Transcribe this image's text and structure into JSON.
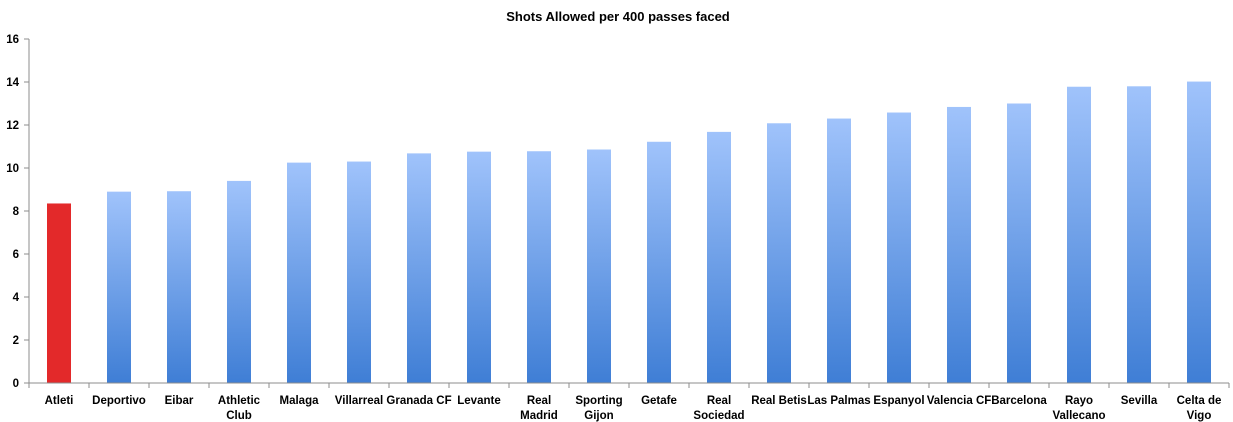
{
  "chart_data": {
    "type": "bar",
    "title": "Shots Allowed per 400 passes faced",
    "xlabel": "",
    "ylabel": "",
    "ylim": [
      0,
      16
    ],
    "yticks": [
      0,
      2,
      4,
      6,
      8,
      10,
      12,
      14,
      16
    ],
    "grid": false,
    "legend": "none",
    "categories": [
      [
        "Atleti"
      ],
      [
        "Deportivo"
      ],
      [
        "Eibar"
      ],
      [
        "Athletic",
        "Club"
      ],
      [
        "Malaga"
      ],
      [
        "Villarreal"
      ],
      [
        "Granada CF"
      ],
      [
        "Levante"
      ],
      [
        "Real",
        "Madrid"
      ],
      [
        "Sporting",
        "Gijon"
      ],
      [
        "Getafe"
      ],
      [
        "Real",
        "Sociedad"
      ],
      [
        "Real Betis"
      ],
      [
        "Las Palmas"
      ],
      [
        "Espanyol"
      ],
      [
        "Valencia CF"
      ],
      [
        "Barcelona"
      ],
      [
        "Rayo",
        "Vallecano"
      ],
      [
        "Sevilla"
      ],
      [
        "Celta de",
        "Vigo"
      ]
    ],
    "values": [
      8.35,
      8.9,
      8.92,
      9.4,
      10.25,
      10.3,
      10.68,
      10.76,
      10.78,
      10.86,
      11.22,
      11.68,
      12.08,
      12.3,
      12.58,
      12.84,
      13.0,
      13.78,
      13.8,
      14.02
    ],
    "highlight_index": 0,
    "colors": {
      "highlight": "#e3292a",
      "bar_top": "#a0c3fb",
      "bar_bottom": "#3f7ed5",
      "axis": "#8c8c8c"
    }
  }
}
